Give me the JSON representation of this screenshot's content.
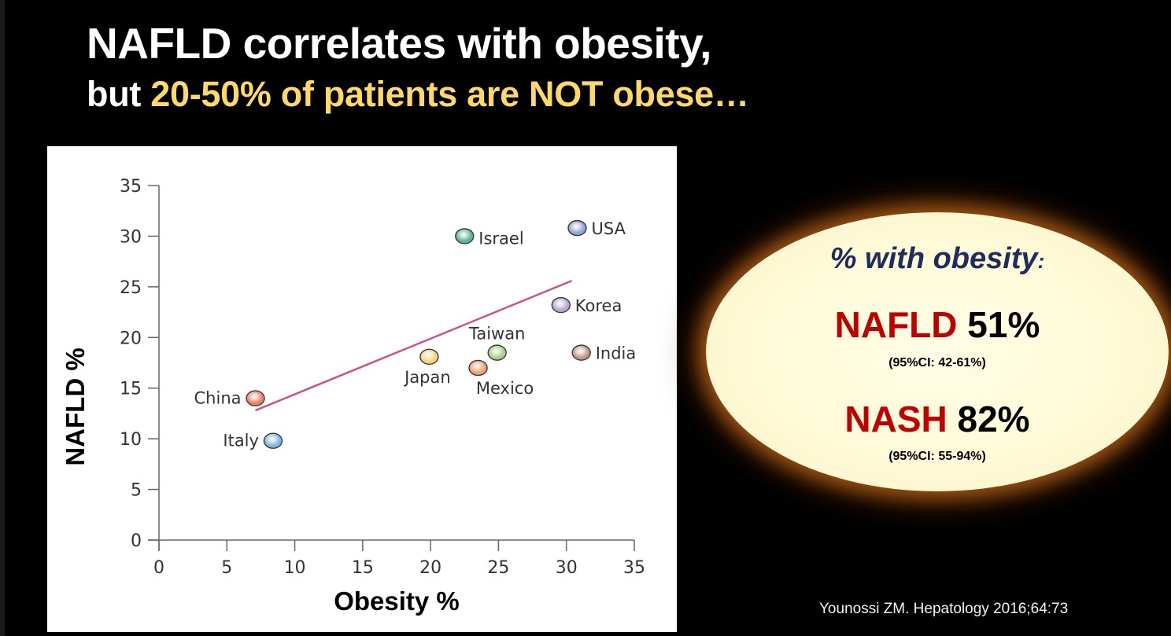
{
  "slide": {
    "title_line1": "NAFLD correlates with obesity,",
    "title_line2_prefix": "but ",
    "title_line2_highlight": "20-50% of patients are NOT obese…",
    "highlight_color": "#ffd966",
    "citation": "Younossi ZM. Hepatology 2016;64:73"
  },
  "callout": {
    "heading": "% with obesity",
    "heading_colon": ":",
    "stats": [
      {
        "name": "NAFLD",
        "value": "51%",
        "ci": "(95%CI: 42-61%)"
      },
      {
        "name": "NASH",
        "value": "82%",
        "ci": "(95%CI: 55-94%)"
      }
    ],
    "name_color": "#c00000",
    "heading_color": "#1f2d5c"
  },
  "chart_data": {
    "type": "scatter",
    "title": "",
    "xlabel": "Obesity %",
    "ylabel": "NAFLD %",
    "xlim": [
      0,
      35
    ],
    "ylim": [
      0,
      35
    ],
    "xticks": [
      0,
      5,
      10,
      15,
      20,
      25,
      30,
      35
    ],
    "yticks": [
      0,
      5,
      10,
      15,
      20,
      25,
      30,
      35
    ],
    "grid": false,
    "points": [
      {
        "label": "China",
        "x": 7.1,
        "y": 14.0,
        "color": "#e8826a",
        "label_pos": "left"
      },
      {
        "label": "Italy",
        "x": 8.4,
        "y": 9.8,
        "color": "#7fb8e0",
        "label_pos": "left"
      },
      {
        "label": "Japan",
        "x": 19.9,
        "y": 18.1,
        "color": "#f7d27a",
        "label_pos": "below"
      },
      {
        "label": "Mexico",
        "x": 23.5,
        "y": 17.0,
        "color": "#f3a06e",
        "label_pos": "below"
      },
      {
        "label": "Taiwan",
        "x": 24.9,
        "y": 18.5,
        "color": "#a8cf8c",
        "label_pos": "above"
      },
      {
        "label": "Israel",
        "x": 22.5,
        "y": 30.0,
        "color": "#5fb592",
        "label_pos": "right"
      },
      {
        "label": "USA",
        "x": 30.8,
        "y": 30.8,
        "color": "#8ea6d4",
        "label_pos": "right"
      },
      {
        "label": "Korea",
        "x": 29.6,
        "y": 23.2,
        "color": "#b9a6d6",
        "label_pos": "right"
      },
      {
        "label": "India",
        "x": 31.1,
        "y": 18.5,
        "color": "#bf9a8a",
        "label_pos": "right"
      }
    ],
    "trendline": {
      "x": [
        7.1,
        30.4
      ],
      "y": [
        12.8,
        25.6
      ],
      "color": "#d0508a"
    }
  }
}
